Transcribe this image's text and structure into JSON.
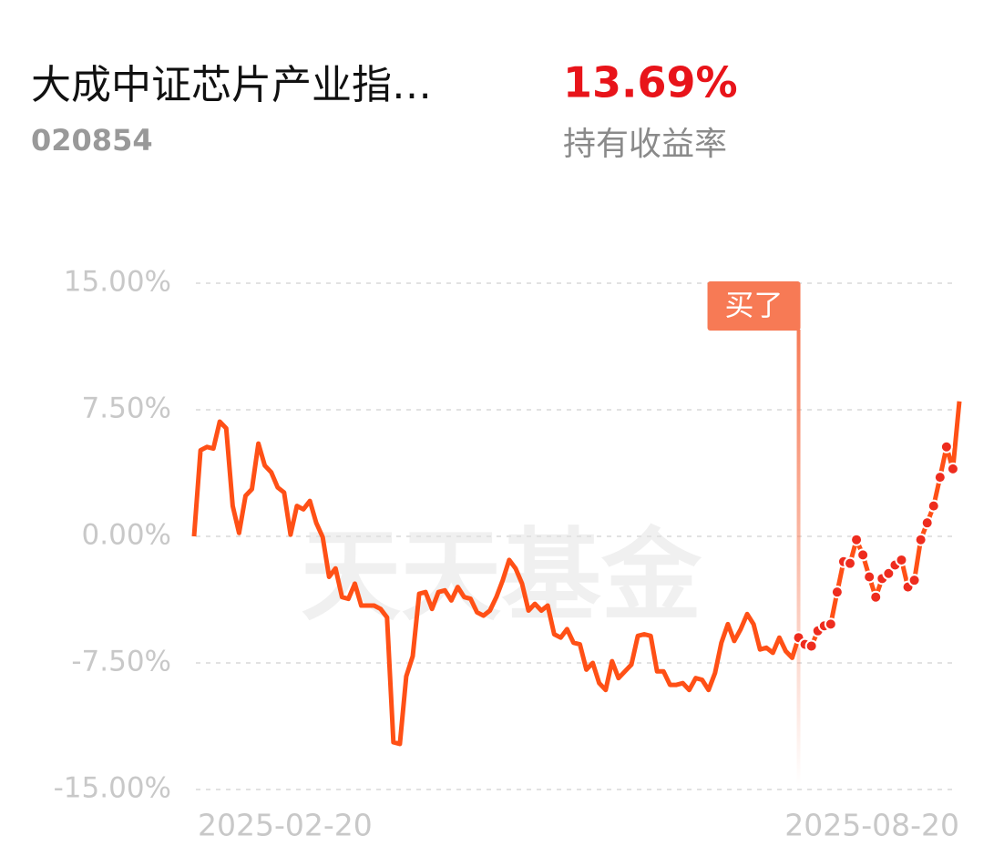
{
  "header": {
    "fund_name": "大成中证芯片产业指…",
    "fund_code": "020854",
    "return_value": "13.69%",
    "return_label": "持有收益率"
  },
  "chart_data": {
    "type": "line",
    "watermark": "天天基金",
    "categories": [
      "2025-02-20",
      null,
      null,
      null,
      null,
      null,
      null,
      null,
      null,
      null,
      null,
      null,
      null,
      null,
      null,
      null,
      null,
      null,
      null,
      null,
      null,
      null,
      null,
      null,
      null,
      null,
      null,
      null,
      null,
      null,
      null,
      null,
      null,
      null,
      null,
      null,
      null,
      null,
      null,
      null,
      null,
      null,
      null,
      null,
      null,
      null,
      null,
      null,
      null,
      null,
      null,
      null,
      null,
      null,
      null,
      null,
      null,
      null,
      null,
      null,
      null,
      null,
      null,
      null,
      null,
      null,
      null,
      null,
      null,
      null,
      null,
      null,
      null,
      null,
      null,
      null,
      null,
      null,
      null,
      null,
      null,
      null,
      null,
      null,
      null,
      null,
      null,
      null,
      null,
      null,
      null,
      null,
      null,
      null,
      null,
      null,
      null,
      null,
      null,
      null,
      null,
      null,
      null,
      null,
      null,
      null,
      null,
      null,
      null,
      null,
      null,
      null,
      null,
      null,
      null,
      null,
      null,
      null,
      null,
      "2025-08-20"
    ],
    "series": [
      {
        "color": "#ff5016",
        "values": [
          0,
          5.1,
          5.3,
          5.2,
          6.8,
          6.4,
          1.8,
          0.2,
          2.4,
          2.8,
          5.5,
          4.2,
          3.8,
          2.9,
          2.6,
          0.1,
          1.8,
          1.6,
          2.1,
          0.8,
          -0.05,
          -2.4,
          -1.9,
          -3.6,
          -3.7,
          -2.8,
          -4.1,
          -4.1,
          -4.1,
          -4.3,
          -4.8,
          -12.2,
          -12.3,
          -8.3,
          -7.1,
          -3.4,
          -3.3,
          -4.3,
          -3.3,
          -3.2,
          -3.8,
          -3.0,
          -3.6,
          -3.7,
          -4.5,
          -4.7,
          -4.4,
          -3.6,
          -2.6,
          -1.4,
          -1.9,
          -2.8,
          -4.4,
          -4.0,
          -4.4,
          -4.1,
          -5.8,
          -6.0,
          -5.5,
          -6.3,
          -6.4,
          -7.9,
          -7.5,
          -8.7,
          -9.1,
          -7.4,
          -8.4,
          -8.0,
          -7.6,
          -5.9,
          -5.8,
          -5.9,
          -8.0,
          -8.0,
          -8.8,
          -8.8,
          -8.7,
          -9.1,
          -8.4,
          -8.5,
          -9.1,
          -8.1,
          -6.3,
          -5.2,
          -6.2,
          -5.5,
          -4.6,
          -5.2,
          -6.7,
          -6.6,
          -6.9,
          -6.0,
          -6.8,
          -7.2,
          -6.0,
          -6.4,
          -6.5,
          -5.6,
          -5.3,
          -5.2,
          -3.3,
          -1.5,
          -1.6,
          -0.2,
          -1.1,
          -2.4,
          -3.6,
          -2.5,
          -2.2,
          -1.7,
          -1.4,
          -3.0,
          -2.6,
          -0.2,
          0.8,
          1.8,
          3.5,
          5.3,
          4.0,
          8.0
        ]
      }
    ],
    "annotation": {
      "text": "买了",
      "index": 94,
      "color": "#f77a55"
    },
    "dot_color": "#ee2c1e",
    "ylim": [
      -15,
      15
    ],
    "yticks": [
      {
        "value": 15,
        "label": "15.00%"
      },
      {
        "value": 7.5,
        "label": "7.50%"
      },
      {
        "value": 0,
        "label": "0.00%"
      },
      {
        "value": -7.5,
        "label": "-7.50%"
      },
      {
        "value": -15,
        "label": "-15.00%"
      }
    ],
    "grid": true
  }
}
